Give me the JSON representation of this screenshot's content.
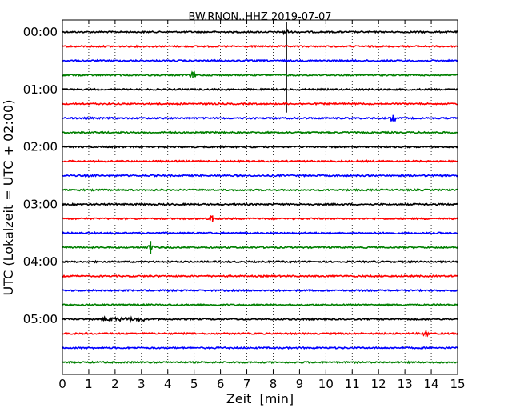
{
  "chart_data": {
    "type": "line",
    "title": "BW.RNON..HHZ 2019-07-07",
    "xlabel": "Zeit  [min]",
    "ylabel": "UTC (Lokalzeit = UTC + 02:00)",
    "xlim": [
      0,
      15
    ],
    "x_ticks": [
      "0",
      "1",
      "2",
      "3",
      "4",
      "5",
      "6",
      "7",
      "8",
      "9",
      "10",
      "11",
      "12",
      "13",
      "14",
      "15"
    ],
    "y_tick_labels": [
      "00:00",
      "01:00",
      "02:00",
      "03:00",
      "04:00",
      "05:00"
    ],
    "grid": "vertical dotted lines at each minute",
    "trace_colors": [
      "#000000",
      "#ff0000",
      "#0000ff",
      "#008000"
    ],
    "trace_start_times": [
      "00:00",
      "00:15",
      "00:30",
      "00:45",
      "01:00",
      "01:15",
      "01:30",
      "01:45",
      "02:00",
      "02:15",
      "02:30",
      "02:45",
      "03:00",
      "03:15",
      "03:30",
      "03:45",
      "04:00",
      "04:15",
      "04:30",
      "04:45",
      "05:00",
      "05:15",
      "05:30",
      "05:45"
    ],
    "events": [
      {
        "trace": "00:00",
        "minute": 8.5,
        "description": "large spike extending down to the 01:30 trace"
      },
      {
        "trace": "00:45",
        "minute": 4.95,
        "description": "small burst"
      },
      {
        "trace": "01:30",
        "minute": 12.55,
        "description": "small burst"
      },
      {
        "trace": "03:15",
        "minute": 5.7,
        "description": "small burst"
      },
      {
        "trace": "03:45",
        "minute": 3.35,
        "description": "spike"
      },
      {
        "trace": "05:00",
        "minute": 2.4,
        "description": "elevated noise segment from 1.5 to 3.1 min"
      },
      {
        "trace": "05:15",
        "minute": 13.8,
        "description": "small burst"
      }
    ]
  }
}
